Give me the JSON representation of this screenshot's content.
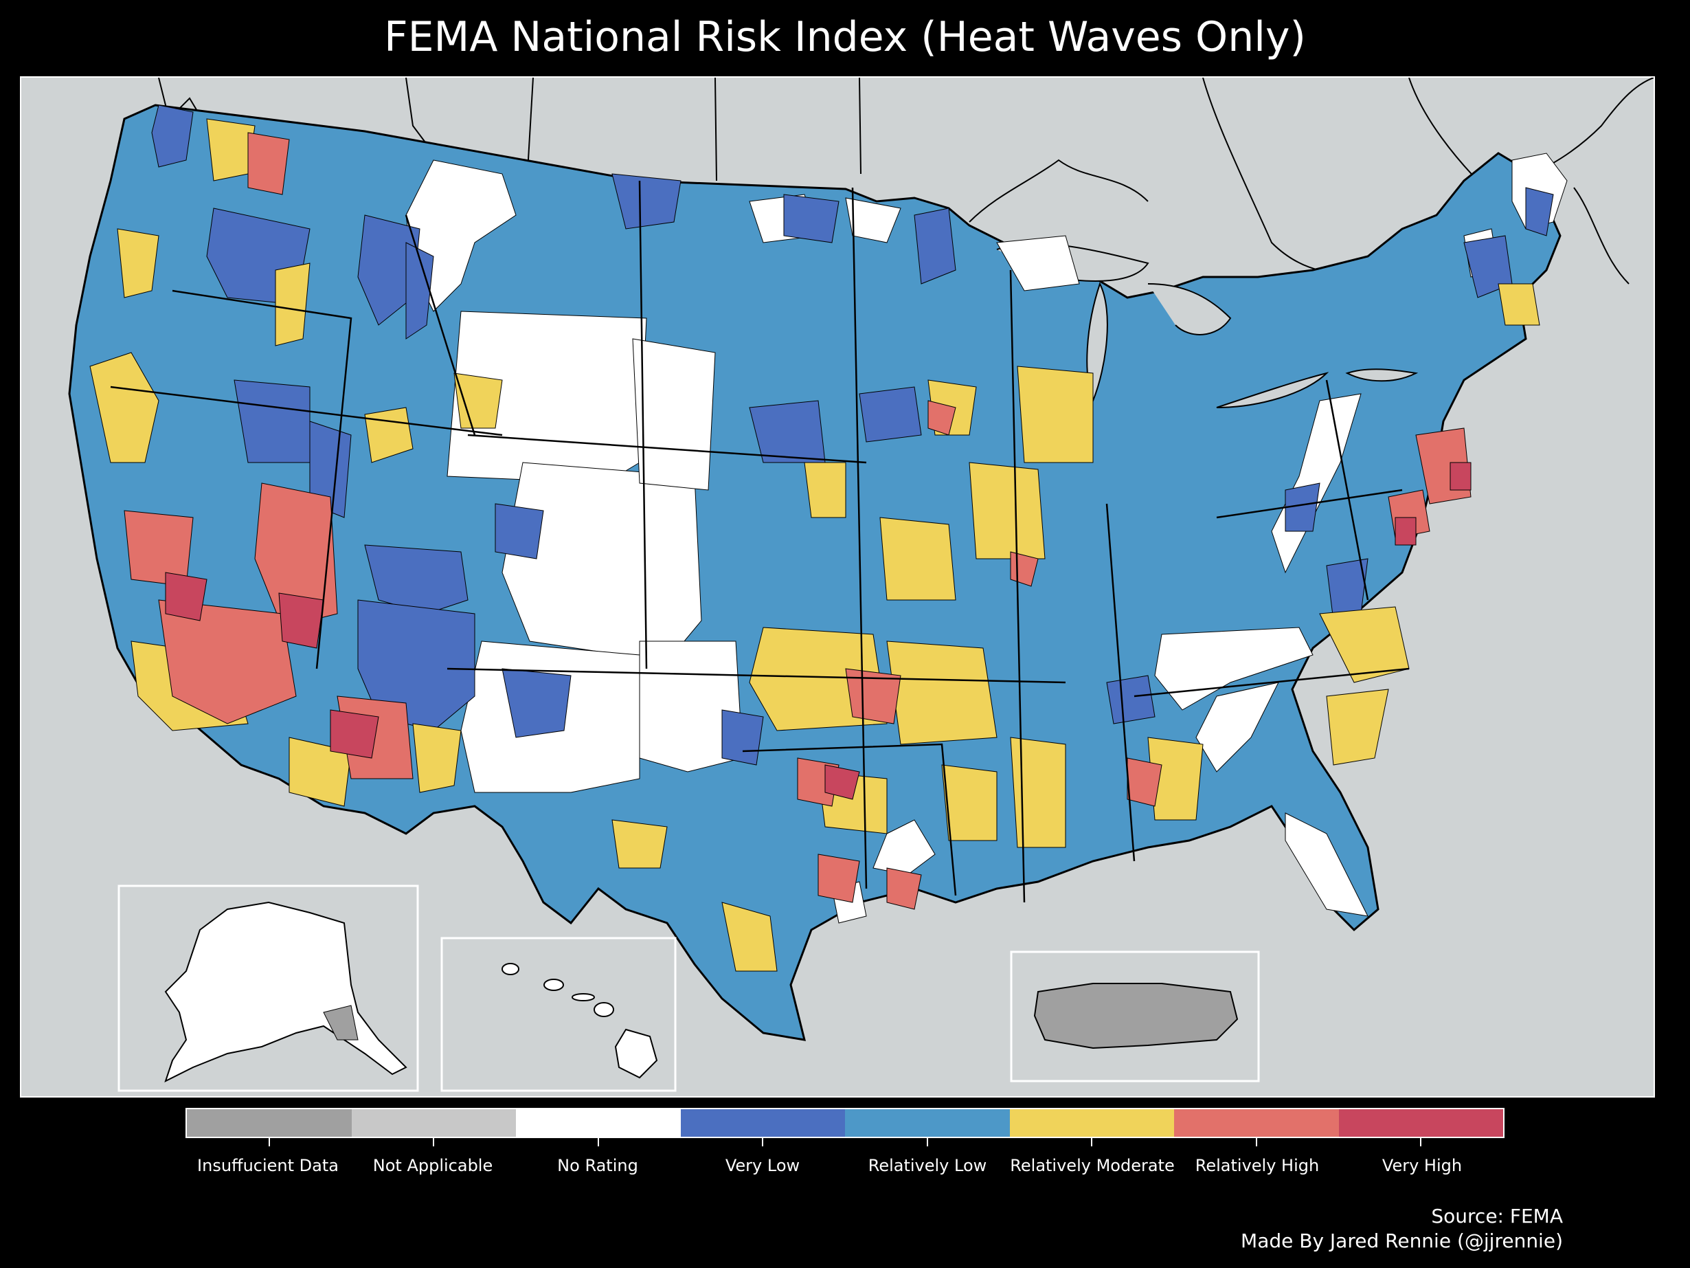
{
  "title": "FEMA National Risk Index (Heat Waves Only)",
  "colors": {
    "background": "#000000",
    "ocean": "#cfd3d4",
    "border": "#000000",
    "inset_border": "#ffffff"
  },
  "map": {
    "insets": [
      "Alaska",
      "Hawaii",
      "Puerto Rico"
    ]
  },
  "legend": {
    "items": [
      {
        "label": "Insuffucient Data",
        "color": "#a0a0a0"
      },
      {
        "label": "Not Applicable",
        "color": "#c8c8c8"
      },
      {
        "label": "No Rating",
        "color": "#ffffff"
      },
      {
        "label": "Very Low",
        "color": "#4b6fc0"
      },
      {
        "label": "Relatively Low",
        "color": "#4d98c8"
      },
      {
        "label": "Relatively Moderate",
        "color": "#f0d35a"
      },
      {
        "label": "Relatively High",
        "color": "#e2716a"
      },
      {
        "label": "Very High",
        "color": "#c8465e"
      }
    ]
  },
  "credits": {
    "source": "Source: FEMA",
    "author": "Made By Jared Rennie (@jjrennie)"
  }
}
